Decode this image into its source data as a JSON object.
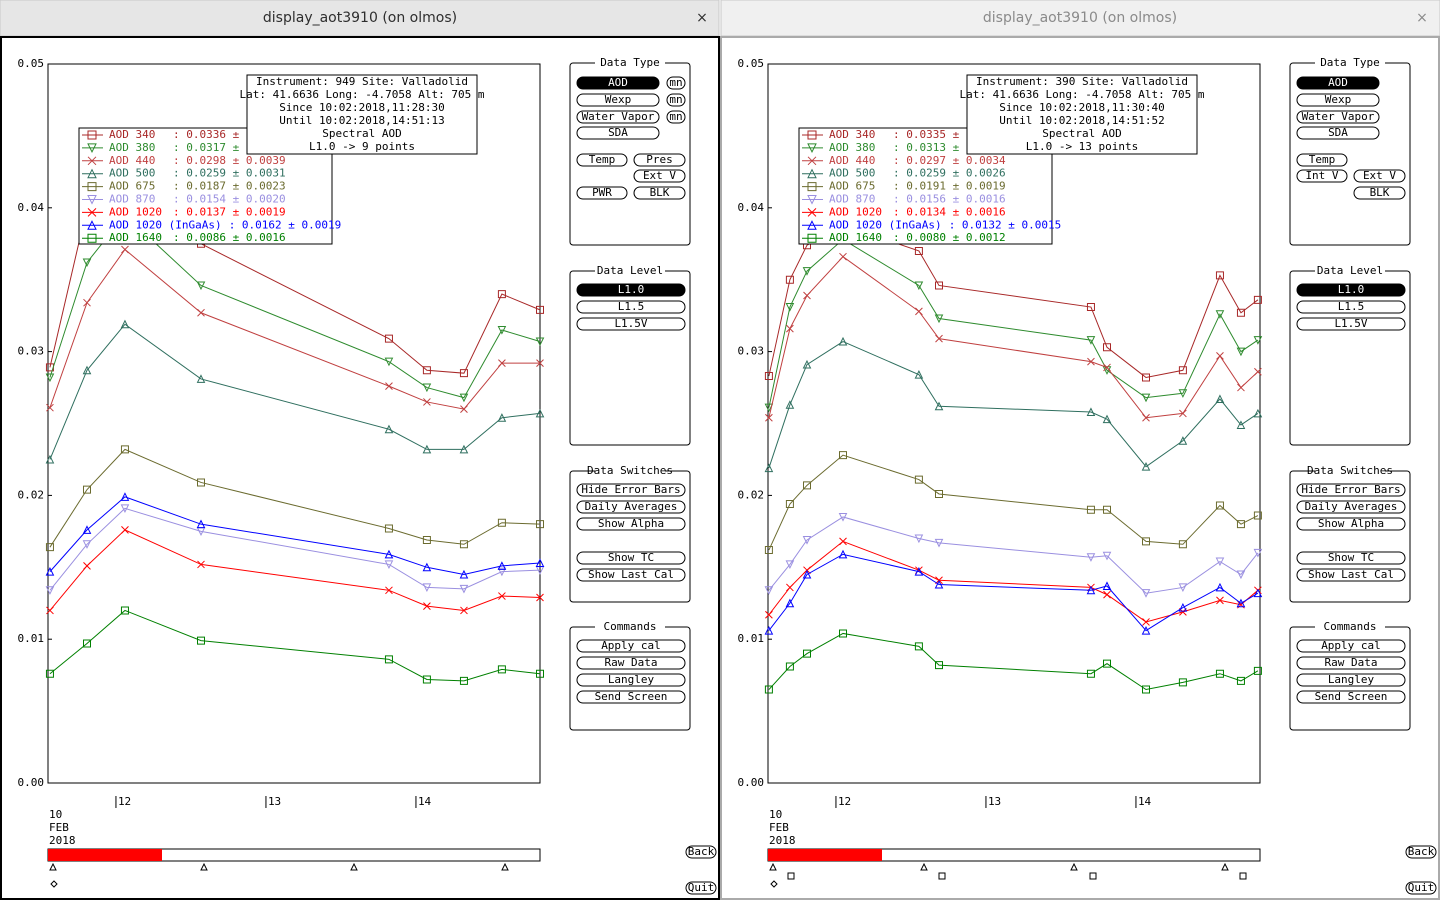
{
  "windows": [
    {
      "title": "display_aot3910 (on olmos)",
      "close": "×",
      "back": "Back",
      "quit": "Quit",
      "chart_data": {
        "type": "line",
        "info": [
          "Instrument: 949 Site: Valladolid",
          "Lat: 41.6636 Long: -4.7058 Alt: 705 m",
          "Since 10:02:2018,11:28:30",
          "Until 10:02:2018,14:51:13",
          "Spectral AOD",
          "L1.0 -> 9 points"
        ],
        "date_label": [
          "10",
          "FEB",
          "2018"
        ],
        "x": [
          11.56,
          11.807,
          12.06,
          12.567,
          13.82,
          14.073,
          14.32,
          14.573,
          14.827
        ],
        "xlim": [
          11.547,
          14.827
        ],
        "xticks": [
          12,
          13,
          14
        ],
        "ylim": [
          0,
          0.05
        ],
        "yticks": [
          {
            "value": 0,
            "label": "0.00"
          },
          0.01,
          0.02,
          0.03,
          0.04,
          0.05
        ],
        "series": [
          {
            "name": "AOD 340",
            "stats": ": 0.0336 ± 0.0",
            "color": "#a82828",
            "marker": "square",
            "values": [
              0.0289,
              0.04,
              0.042,
              0.0375,
              0.0309,
              0.0287,
              0.0285,
              0.034,
              0.0329
            ]
          },
          {
            "name": "AOD 380",
            "stats": ": 0.0317 ± 0.0",
            "color": "#2e8b2e",
            "marker": "triangle-down",
            "values": [
              0.0282,
              0.0362,
              0.0395,
              0.0346,
              0.0293,
              0.0275,
              0.0268,
              0.0315,
              0.0307
            ]
          },
          {
            "name": "AOD 440",
            "stats": ": 0.0298 ± 0.0039",
            "color": "#c04040",
            "marker": "x",
            "values": [
              0.0261,
              0.0334,
              0.0371,
              0.0327,
              0.0276,
              0.0265,
              0.026,
              0.0292,
              0.0292
            ]
          },
          {
            "name": "AOD 500",
            "stats": ": 0.0259 ± 0.0031",
            "color": "#2f6f5f",
            "marker": "triangle-up",
            "values": [
              0.0225,
              0.0287,
              0.0319,
              0.0281,
              0.0246,
              0.0232,
              0.0232,
              0.0254,
              0.0257
            ]
          },
          {
            "name": "AOD 675",
            "stats": ": 0.0187 ± 0.0023",
            "color": "#6b6b2f",
            "marker": "square",
            "values": [
              0.0164,
              0.0204,
              0.0232,
              0.0209,
              0.0177,
              0.0169,
              0.0166,
              0.0181,
              0.018
            ]
          },
          {
            "name": "AOD 870",
            "stats": ": 0.0154 ± 0.0020",
            "color": "#9a8fe0",
            "marker": "triangle-down",
            "values": [
              0.0134,
              0.0166,
              0.0191,
              0.0175,
              0.0152,
              0.0136,
              0.0135,
              0.0147,
              0.0148
            ]
          },
          {
            "name": "AOD 1020",
            "stats": ": 0.0137 ± 0.0019",
            "color": "#ff0000",
            "marker": "x",
            "values": [
              0.012,
              0.0151,
              0.0176,
              0.0152,
              0.0134,
              0.0123,
              0.012,
              0.013,
              0.0129
            ]
          },
          {
            "name": "AOD 1020 (InGaAs)",
            "stats": ": 0.0162 ± 0.0019",
            "color": "#0000ff",
            "marker": "triangle-up",
            "values": [
              0.0147,
              0.0176,
              0.0199,
              0.018,
              0.0159,
              0.015,
              0.0145,
              0.0151,
              0.0153
            ]
          },
          {
            "name": "AOD 1640",
            "stats": ": 0.0086 ± 0.0016",
            "color": "#008000",
            "marker": "square",
            "values": [
              0.0076,
              0.0097,
              0.012,
              0.0099,
              0.0086,
              0.0072,
              0.0071,
              0.0079,
              0.0076
            ]
          }
        ]
      },
      "panel": [
        {
          "title": "Data Type",
          "buttons": [
            {
              "label": "AOD",
              "selected": true
            },
            {
              "label": "mn"
            },
            {
              "label": "Wexp"
            },
            {
              "label": "mn"
            },
            {
              "label": "Water Vapor"
            },
            {
              "label": "mn"
            },
            {
              "label": "SDA"
            },
            {
              "label": "Temp"
            },
            {
              "label": "Pres"
            },
            {
              "label": "Ext V"
            },
            {
              "label": "PWR"
            },
            {
              "label": "BLK"
            }
          ]
        },
        {
          "title": "Data Level",
          "buttons": [
            {
              "label": "L1.0",
              "selected": true
            },
            {
              "label": "L1.5"
            },
            {
              "label": "L1.5V"
            }
          ]
        },
        {
          "title": "Data Switches",
          "buttons": [
            {
              "label": "Hide Error Bars"
            },
            {
              "label": "Daily Averages"
            },
            {
              "label": "Show Alpha"
            },
            {
              "label": "Show TC"
            },
            {
              "label": "Show Last Cal"
            }
          ]
        },
        {
          "title": "Commands",
          "buttons": [
            {
              "label": "Apply cal"
            },
            {
              "label": "Raw Data"
            },
            {
              "label": "Langley"
            },
            {
              "label": "Send Screen"
            }
          ]
        }
      ]
    },
    {
      "title": "display_aot3910 (on olmos)",
      "close": "×",
      "back": "Back",
      "quit": "Quit",
      "chart_data": {
        "type": "line",
        "info": [
          "Instrument: 390 Site: Valladolid",
          "Lat: 41.6636 Long: -4.7058 Alt: 705 m",
          "Since 10:02:2018,11:30:40",
          "Until 10:02:2018,14:51:52",
          "Spectral AOD",
          "L1.0 -> 13 points"
        ],
        "date_label": [
          "10",
          "FEB",
          "2018"
        ],
        "x": [
          11.553,
          11.693,
          11.807,
          12.047,
          12.553,
          12.687,
          13.7,
          13.807,
          14.067,
          14.313,
          14.56,
          14.7,
          14.813
        ],
        "xlim": [
          11.547,
          14.827
        ],
        "xticks": [
          12,
          13,
          14
        ],
        "ylim": [
          0,
          0.05
        ],
        "yticks": [
          {
            "value": 0,
            "label": "0.00"
          },
          0.01,
          0.02,
          0.03,
          0.04,
          0.05
        ],
        "series": [
          {
            "name": "AOD 340",
            "stats": ": 0.0335 ± 0.0",
            "color": "#a82828",
            "marker": "square",
            "values": [
              0.0283,
              0.035,
              0.0374,
              0.0388,
              0.037,
              0.0346,
              0.0331,
              0.0303,
              0.0282,
              0.0287,
              0.0353,
              0.0327,
              0.0336
            ]
          },
          {
            "name": "AOD 380",
            "stats": ": 0.0313 ± 0.0",
            "color": "#2e8b2e",
            "marker": "triangle-down",
            "values": [
              0.0261,
              0.0331,
              0.0356,
              0.0378,
              0.0346,
              0.0323,
              0.0308,
              0.0287,
              0.0268,
              0.0271,
              0.0326,
              0.03,
              0.0308
            ]
          },
          {
            "name": "AOD 440",
            "stats": ": 0.0297 ± 0.0034",
            "color": "#c04040",
            "marker": "x",
            "values": [
              0.0254,
              0.0316,
              0.0339,
              0.0366,
              0.0328,
              0.0309,
              0.0293,
              0.0289,
              0.0254,
              0.0257,
              0.0297,
              0.0275,
              0.0286
            ]
          },
          {
            "name": "AOD 500",
            "stats": ": 0.0259 ± 0.0026",
            "color": "#2f6f5f",
            "marker": "triangle-up",
            "values": [
              0.0219,
              0.0263,
              0.0291,
              0.0307,
              0.0284,
              0.0262,
              0.0258,
              0.0253,
              0.022,
              0.0238,
              0.0267,
              0.0249,
              0.0257
            ]
          },
          {
            "name": "AOD 675",
            "stats": ": 0.0191 ± 0.0019",
            "color": "#6b6b2f",
            "marker": "square",
            "values": [
              0.0162,
              0.0194,
              0.0207,
              0.0228,
              0.0211,
              0.0201,
              0.019,
              0.019,
              0.0168,
              0.0166,
              0.0193,
              0.018,
              0.0186
            ]
          },
          {
            "name": "AOD 870",
            "stats": ": 0.0156 ± 0.0016",
            "color": "#9a8fe0",
            "marker": "triangle-down",
            "values": [
              0.0134,
              0.0152,
              0.0169,
              0.0185,
              0.017,
              0.0167,
              0.0157,
              0.0158,
              0.0132,
              0.0136,
              0.0154,
              0.0145,
              0.016
            ]
          },
          {
            "name": "AOD 1020",
            "stats": ": 0.0134 ± 0.0016",
            "color": "#ff0000",
            "marker": "x",
            "values": [
              0.0117,
              0.0136,
              0.0148,
              0.0168,
              0.0148,
              0.0141,
              0.0136,
              0.0131,
              0.0112,
              0.0119,
              0.0127,
              0.0124,
              0.0134
            ]
          },
          {
            "name": "AOD 1020 (InGaAs)",
            "stats": ": 0.0132 ± 0.0015",
            "color": "#0000ff",
            "marker": "triangle-up",
            "values": [
              0.0106,
              0.0125,
              0.0145,
              0.0159,
              0.0147,
              0.0138,
              0.0134,
              0.0137,
              0.0106,
              0.0122,
              0.0136,
              0.0125,
              0.0132
            ]
          },
          {
            "name": "AOD 1640",
            "stats": ": 0.0080 ± 0.0012",
            "color": "#008000",
            "marker": "square",
            "values": [
              0.0065,
              0.0081,
              0.009,
              0.0104,
              0.0095,
              0.0082,
              0.0076,
              0.0083,
              0.0065,
              0.007,
              0.0076,
              0.0071,
              0.0078
            ]
          }
        ]
      },
      "panel": [
        {
          "title": "Data Type",
          "buttons": [
            {
              "label": "AOD",
              "selected": true
            },
            {
              "label": "Wexp"
            },
            {
              "label": "Water Vapor"
            },
            {
              "label": "SDA"
            },
            {
              "label": "Temp"
            },
            {
              "label": "Int V"
            },
            {
              "label": "Ext V"
            },
            {
              "label": "BLK"
            }
          ]
        },
        {
          "title": "Data Level",
          "buttons": [
            {
              "label": "L1.0",
              "selected": true
            },
            {
              "label": "L1.5"
            },
            {
              "label": "L1.5V"
            }
          ]
        },
        {
          "title": "Data Switches",
          "buttons": [
            {
              "label": "Hide Error Bars"
            },
            {
              "label": "Daily Averages"
            },
            {
              "label": "Show Alpha"
            },
            {
              "label": "Show TC"
            },
            {
              "label": "Show Last Cal"
            }
          ]
        },
        {
          "title": "Commands",
          "buttons": [
            {
              "label": "Apply cal"
            },
            {
              "label": "Raw Data"
            },
            {
              "label": "Langley"
            },
            {
              "label": "Send Screen"
            }
          ]
        }
      ]
    }
  ]
}
